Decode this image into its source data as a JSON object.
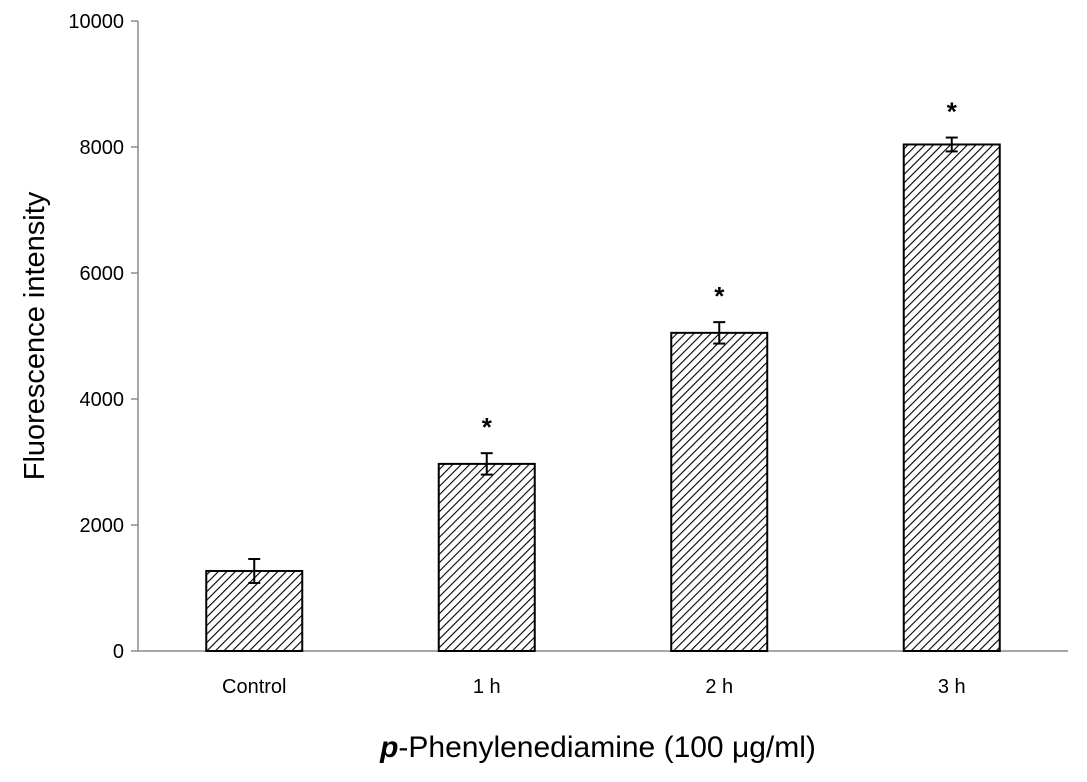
{
  "chart_data": {
    "type": "bar",
    "title": "",
    "xlabel_prefix": "p",
    "xlabel_rest": "-Phenylenediamine (100 μg/ml)",
    "ylabel": "Fluorescence intensity",
    "categories": [
      "Control",
      "1 h",
      "2 h",
      "3 h"
    ],
    "values": [
      1270,
      2970,
      5050,
      8040
    ],
    "errors": [
      190,
      170,
      170,
      110
    ],
    "significance": [
      "",
      "*",
      "*",
      "*"
    ],
    "ylim": [
      0,
      10000
    ],
    "yticks": [
      "0",
      "2000",
      "4000",
      "6000",
      "8000",
      "10000"
    ],
    "grid": false,
    "bar_pattern": "diagonal-hatch"
  }
}
